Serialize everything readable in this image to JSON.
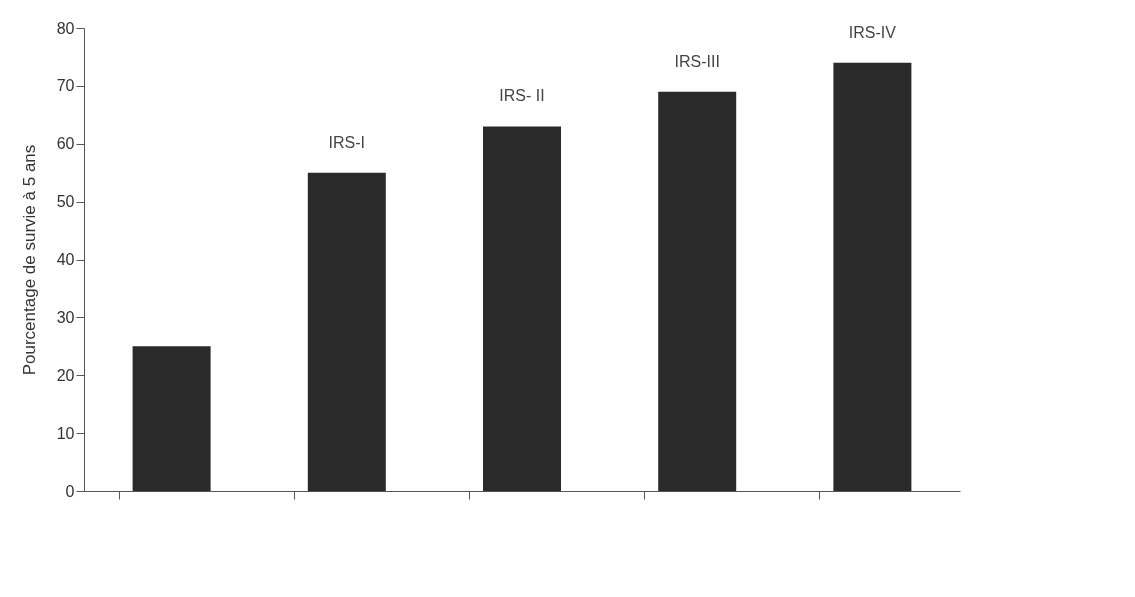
{
  "chart_data": {
    "type": "bar",
    "ylabel": "Pourcentage de survie à 5 ans",
    "categories": [
      null,
      "IRS-I",
      "IRS- II",
      "IRS-III",
      "IRS-IV"
    ],
    "values": [
      25,
      55,
      63,
      69,
      74
    ],
    "color": "#2a2a2a",
    "ylim": [
      0,
      80
    ],
    "yticks": [
      0,
      10,
      20,
      30,
      40,
      50,
      60,
      70,
      80
    ],
    "grid": false,
    "tick_labels": "y"
  }
}
